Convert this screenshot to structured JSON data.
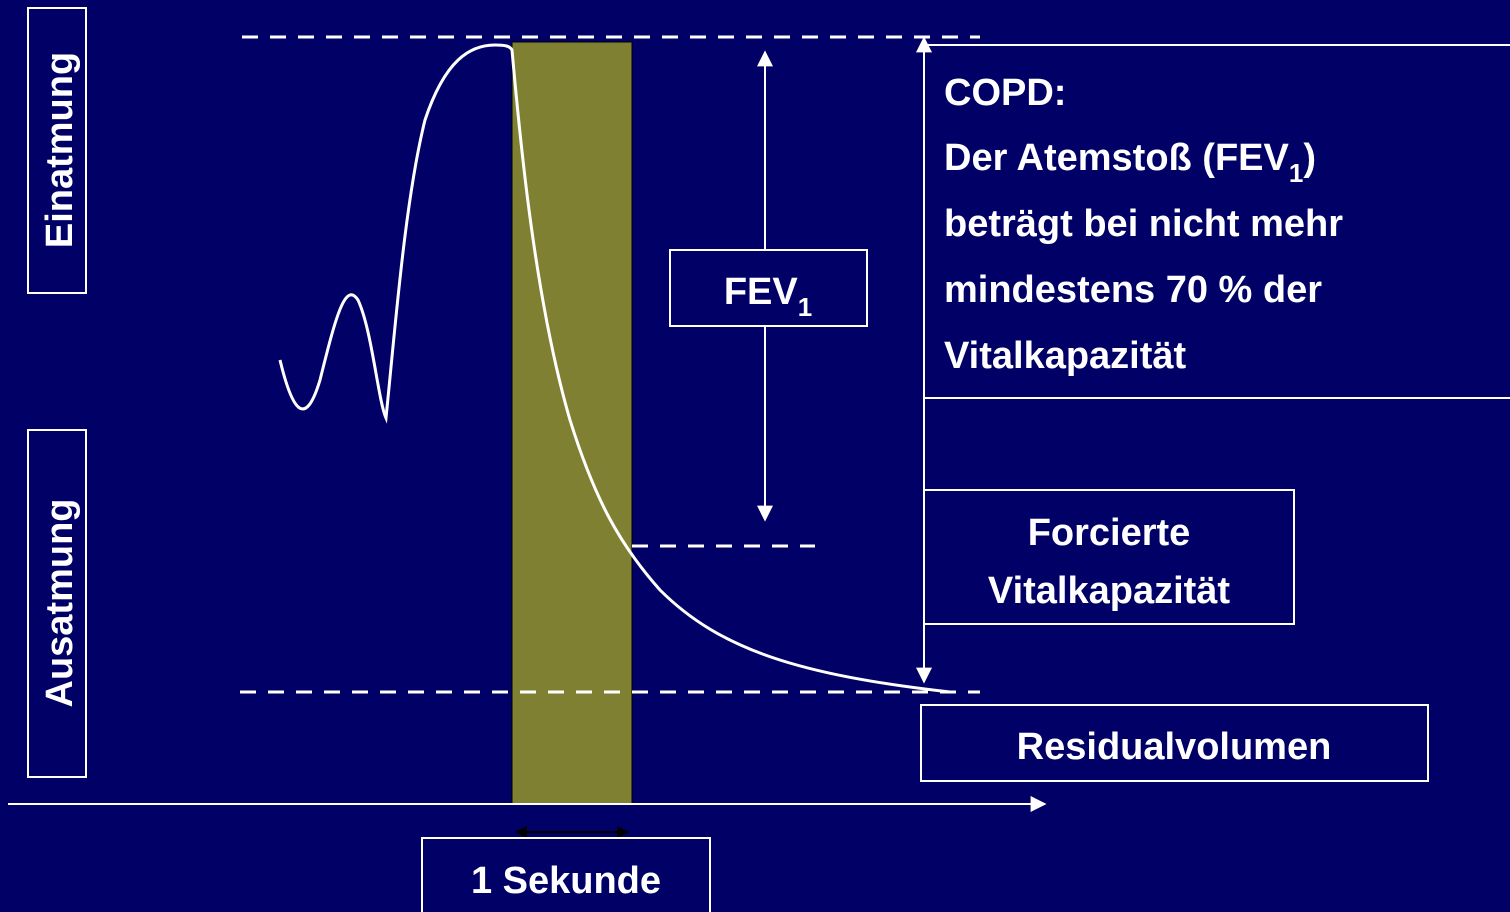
{
  "labels": {
    "inhale": "Einatmung",
    "exhale": "Ausatmung"
  },
  "fev_box": {
    "main": "FEV",
    "sub": "1"
  },
  "copd": {
    "title": "COPD:",
    "first_line": {
      "before": "Der Atemstoß (FEV",
      "sub": "1",
      "after": ")"
    },
    "lines": [
      "beträgt bei nicht mehr",
      "mindestens 70 % der",
      "Vitalkapazität"
    ]
  },
  "fvc_box": {
    "lines": [
      "Forcierte",
      "Vitalkapazität"
    ]
  },
  "residual_box": "Residualvolumen",
  "second_box": "1 Sekunde"
}
